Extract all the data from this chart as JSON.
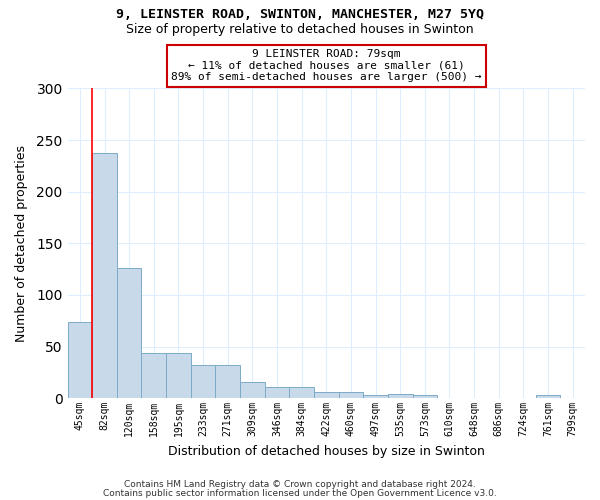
{
  "title1": "9, LEINSTER ROAD, SWINTON, MANCHESTER, M27 5YQ",
  "title2": "Size of property relative to detached houses in Swinton",
  "xlabel": "Distribution of detached houses by size in Swinton",
  "ylabel": "Number of detached properties",
  "categories": [
    "45sqm",
    "82sqm",
    "120sqm",
    "158sqm",
    "195sqm",
    "233sqm",
    "271sqm",
    "309sqm",
    "346sqm",
    "384sqm",
    "422sqm",
    "460sqm",
    "497sqm",
    "535sqm",
    "573sqm",
    "610sqm",
    "648sqm",
    "686sqm",
    "724sqm",
    "761sqm",
    "799sqm"
  ],
  "values": [
    74,
    237,
    126,
    44,
    44,
    32,
    32,
    16,
    11,
    11,
    6,
    6,
    3,
    4,
    3,
    0,
    0,
    0,
    0,
    3,
    0
  ],
  "bar_color": "#c8daea",
  "bar_edge_color": "#7baac8",
  "red_line_x": 1,
  "annotation_text": "9 LEINSTER ROAD: 79sqm\n← 11% of detached houses are smaller (61)\n89% of semi-detached houses are larger (500) →",
  "annotation_box_color": "#ffffff",
  "annotation_box_edge": "#cc0000",
  "ylim": [
    0,
    300
  ],
  "yticks": [
    0,
    50,
    100,
    150,
    200,
    250,
    300
  ],
  "footer1": "Contains HM Land Registry data © Crown copyright and database right 2024.",
  "footer2": "Contains public sector information licensed under the Open Government Licence v3.0.",
  "bg_color": "#ffffff",
  "plot_bg_color": "#ffffff",
  "grid_color": "#ddeeff"
}
